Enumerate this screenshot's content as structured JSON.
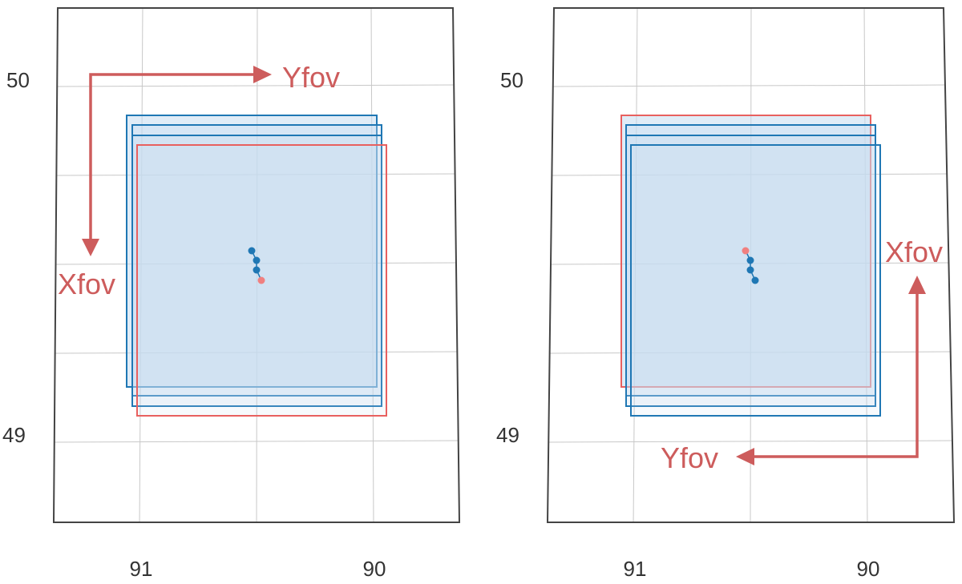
{
  "colors": {
    "frame": "#444444",
    "grid": "#c8c8c8",
    "blue": "#1f77b4",
    "blue_fill": "#c6dcf0",
    "red": "#e8605f",
    "arrow": "#cd5c5c",
    "dot_blue": "#1f77b4",
    "dot_red": "#f08080"
  },
  "panels": [
    {
      "id": "left",
      "y_ticks": [
        "50",
        "49"
      ],
      "x_ticks": [
        "91",
        "90"
      ],
      "arrows": {
        "yfov_label": "Yfov",
        "xfov_label": "Xfov"
      }
    },
    {
      "id": "right",
      "y_ticks": [
        "50",
        "49"
      ],
      "x_ticks": [
        "91",
        "90"
      ],
      "arrows": {
        "yfov_label": "Yfov",
        "xfov_label": "Xfov"
      }
    }
  ]
}
